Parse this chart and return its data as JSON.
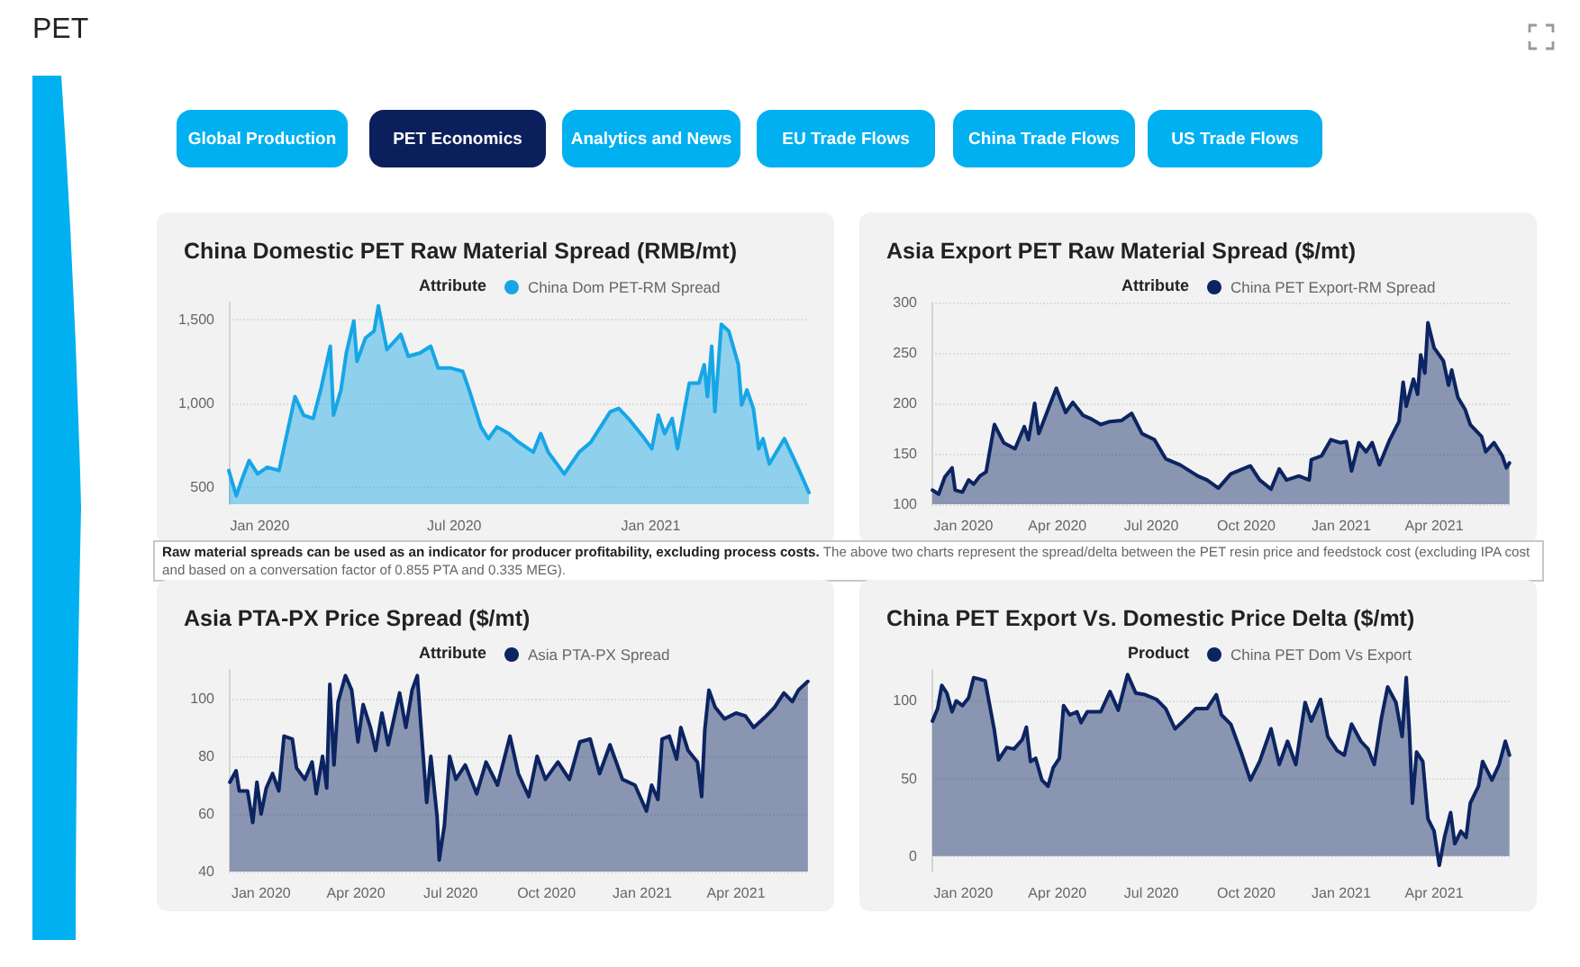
{
  "chart_data": [
    {
      "type": "other",
      "title": "PET",
      "annotations": [
        "Global Production",
        "PET Economics",
        "Analytics and News",
        "EU Trade Flows",
        "China Trade Flows",
        "US Trade Flows"
      ],
      "colors": [
        "#00b0f0",
        "#0b1f5c",
        "#00b0f0",
        "#00b0f0",
        "#00b0f0",
        "#00b0f0"
      ]
    },
    {
      "type": "area",
      "title": "China Domestic PET Raw Material Spread (RMB/mt)",
      "legend_title": "Attribute",
      "legend": "top",
      "grid": "y",
      "x": [
        "2019-12-03",
        "2019-12-10",
        "2019-12-16",
        "2019-12-22",
        "2019-12-30",
        "2020-01-08",
        "2020-01-19",
        "2020-02-03",
        "2020-02-11",
        "2020-02-20",
        "2020-02-27",
        "2020-03-07",
        "2020-03-10",
        "2020-03-17",
        "2020-03-22",
        "2020-03-29",
        "2020-04-01",
        "2020-04-09",
        "2020-04-17",
        "2020-04-21",
        "2020-04-29",
        "2020-05-12",
        "2020-05-19",
        "2020-05-30",
        "2020-06-09",
        "2020-06-16",
        "2020-06-28",
        "2020-07-09",
        "2020-07-15",
        "2020-07-26",
        "2020-08-02",
        "2020-08-10",
        "2020-08-21",
        "2020-08-30",
        "2020-09-13",
        "2020-09-20",
        "2020-09-27",
        "2020-10-12",
        "2020-10-26",
        "2020-11-06",
        "2020-11-24",
        "2020-12-02",
        "2020-12-11",
        "2020-12-25",
        "2021-01-02",
        "2021-01-08",
        "2021-01-14",
        "2021-01-21",
        "2021-01-26",
        "2021-02-06",
        "2021-02-15",
        "2021-02-20",
        "2021-02-23",
        "2021-02-27",
        "2021-03-02",
        "2021-03-08",
        "2021-03-15",
        "2021-03-24",
        "2021-03-27",
        "2021-04-01",
        "2021-04-07",
        "2021-04-12",
        "2021-04-16",
        "2021-04-22",
        "2021-05-06",
        "2021-05-12",
        "2021-05-20",
        "2021-05-29"
      ],
      "series": [
        {
          "name": "China Dom PET-RM Spread",
          "color": "#16a6e6",
          "values": [
            600,
            450,
            560,
            660,
            580,
            620,
            600,
            1040,
            930,
            910,
            1080,
            1340,
            930,
            1080,
            1300,
            1490,
            1250,
            1390,
            1430,
            1580,
            1320,
            1410,
            1280,
            1300,
            1340,
            1210,
            1210,
            1190,
            1080,
            860,
            790,
            860,
            820,
            770,
            710,
            820,
            710,
            580,
            710,
            770,
            950,
            970,
            910,
            800,
            730,
            930,
            820,
            910,
            730,
            1120,
            1120,
            1230,
            1040,
            1340,
            950,
            1470,
            1430,
            1230,
            990,
            1080,
            970,
            730,
            790,
            640,
            790,
            710,
            600,
            470
          ]
        }
      ],
      "xlim": [
        "2019-12-03",
        "2021-05-29"
      ],
      "xticks": [
        {
          "value": "2020-01-01",
          "label": "Jan 2020"
        },
        {
          "value": "2020-07-01",
          "label": "Jul 2020"
        },
        {
          "value": "2021-01-01",
          "label": "Jan 2021"
        }
      ],
      "ylim": [
        400,
        1600
      ],
      "yticks": [
        500,
        {
          "value": 1000,
          "label": "1,000"
        },
        {
          "value": 1500,
          "label": "1,500"
        }
      ]
    },
    {
      "type": "area",
      "title": "Asia Export PET Raw Material Spread ($/mt)",
      "legend_title": "Attribute",
      "legend": "top",
      "grid": "y",
      "x": [
        "2019-12-02",
        "2019-12-08",
        "2019-12-14",
        "2019-12-21",
        "2019-12-24",
        "2019-12-31",
        "2020-01-06",
        "2020-01-11",
        "2020-01-17",
        "2020-01-23",
        "2020-01-31",
        "2020-02-09",
        "2020-02-20",
        "2020-02-29",
        "2020-03-04",
        "2020-03-10",
        "2020-03-14",
        "2020-03-23",
        "2020-03-31",
        "2020-04-09",
        "2020-04-16",
        "2020-04-26",
        "2020-05-03",
        "2020-05-13",
        "2020-05-22",
        "2020-06-02",
        "2020-06-12",
        "2020-06-22",
        "2020-07-04",
        "2020-07-15",
        "2020-07-29",
        "2020-08-15",
        "2020-08-24",
        "2020-09-04",
        "2020-09-16",
        "2020-10-05",
        "2020-10-14",
        "2020-10-25",
        "2020-11-02",
        "2020-11-09",
        "2020-11-21",
        "2020-12-01",
        "2020-12-03",
        "2020-12-13",
        "2020-12-22",
        "2020-12-31",
        "2021-01-06",
        "2021-01-11",
        "2021-01-18",
        "2021-01-25",
        "2021-01-31",
        "2021-02-07",
        "2021-02-17",
        "2021-02-26",
        "2021-03-02",
        "2021-03-05",
        "2021-03-12",
        "2021-03-16",
        "2021-03-19",
        "2021-03-23",
        "2021-03-26",
        "2021-04-01",
        "2021-04-10",
        "2021-04-15",
        "2021-04-18",
        "2021-04-24",
        "2021-05-01",
        "2021-05-06",
        "2021-05-17",
        "2021-05-21",
        "2021-05-29",
        "2021-06-06",
        "2021-06-10",
        "2021-06-13"
      ],
      "series": [
        {
          "name": "China PET Export-RM Spread",
          "color": "#0c2461",
          "values": [
            114,
            110,
            127,
            136,
            114,
            112,
            124,
            120,
            128,
            132,
            179,
            161,
            155,
            177,
            164,
            200,
            170,
            194,
            215,
            191,
            201,
            188,
            185,
            179,
            182,
            183,
            190,
            170,
            164,
            145,
            139,
            128,
            124,
            116,
            130,
            138,
            124,
            115,
            135,
            124,
            128,
            124,
            144,
            148,
            164,
            161,
            162,
            133,
            161,
            152,
            161,
            139,
            164,
            182,
            221,
            197,
            224,
            209,
            248,
            230,
            280,
            255,
            242,
            218,
            233,
            206,
            194,
            179,
            167,
            152,
            161,
            148,
            136,
            141
          ]
        }
      ],
      "xlim": [
        "2019-12-01",
        "2021-06-15"
      ],
      "xticks": [
        {
          "value": "2020-01-01",
          "label": "Jan 2020"
        },
        {
          "value": "2020-04-01",
          "label": "Apr 2020"
        },
        {
          "value": "2020-07-01",
          "label": "Jul 2020"
        },
        {
          "value": "2020-10-01",
          "label": "Oct 2020"
        },
        {
          "value": "2021-01-01",
          "label": "Jan 2021"
        },
        {
          "value": "2021-04-01",
          "label": "Apr 2021"
        }
      ],
      "ylim": [
        100,
        300
      ],
      "yticks": [
        100,
        150,
        200,
        250,
        300
      ]
    },
    {
      "type": "other",
      "annotations": [
        "Raw material spreads can be used as an indicator for producer profitability, excluding process costs.",
        "The above two charts represent the spread/delta between the PET resin price and feedstock cost (excluding IPA cost and based on a conversation factor of 0.855 PTA and 0.335 MEG)."
      ]
    },
    {
      "type": "area",
      "title": "Asia PTA-PX Price Spread ($/mt)",
      "legend_title": "Attribute",
      "legend": "top",
      "grid": "y",
      "x": [
        "2019-12-02",
        "2019-12-08",
        "2019-12-11",
        "2019-12-19",
        "2019-12-24",
        "2019-12-28",
        "2020-01-01",
        "2020-01-06",
        "2020-01-12",
        "2020-01-18",
        "2020-01-23",
        "2020-01-31",
        "2020-02-04",
        "2020-02-12",
        "2020-02-19",
        "2020-02-23",
        "2020-02-29",
        "2020-03-04",
        "2020-03-07",
        "2020-03-11",
        "2020-03-15",
        "2020-03-22",
        "2020-03-28",
        "2020-04-03",
        "2020-04-08",
        "2020-04-15",
        "2020-04-20",
        "2020-04-26",
        "2020-05-02",
        "2020-05-13",
        "2020-05-19",
        "2020-05-25",
        "2020-05-30",
        "2020-06-03",
        "2020-06-08",
        "2020-06-12",
        "2020-06-18",
        "2020-06-20",
        "2020-06-25",
        "2020-06-30",
        "2020-07-06",
        "2020-07-15",
        "2020-07-26",
        "2020-08-04",
        "2020-08-15",
        "2020-08-27",
        "2020-09-04",
        "2020-09-14",
        "2020-09-22",
        "2020-09-30",
        "2020-10-12",
        "2020-10-23",
        "2020-11-02",
        "2020-11-12",
        "2020-11-21",
        "2020-12-01",
        "2020-12-13",
        "2020-12-25",
        "2021-01-05",
        "2021-01-10",
        "2021-01-16",
        "2021-01-20",
        "2021-01-27",
        "2021-02-03",
        "2021-02-07",
        "2021-02-14",
        "2021-02-23",
        "2021-02-27",
        "2021-03-02",
        "2021-03-06",
        "2021-03-12",
        "2021-03-21",
        "2021-04-01",
        "2021-04-10",
        "2021-04-18",
        "2021-04-30",
        "2021-05-08",
        "2021-05-17",
        "2021-05-25",
        "2021-05-31",
        "2021-06-09"
      ],
      "series": [
        {
          "name": "Asia PTA-PX Spread",
          "color": "#0c2461",
          "values": [
            71,
            75,
            68,
            68,
            57,
            71,
            60,
            69,
            74,
            68,
            87,
            86,
            76,
            72,
            78,
            67,
            80,
            69,
            105,
            77,
            99,
            108,
            103,
            85,
            98,
            90,
            82,
            95,
            84,
            102,
            90,
            103,
            108,
            88,
            64,
            80,
            59,
            44,
            56,
            80,
            72,
            77,
            67,
            78,
            70,
            87,
            74,
            66,
            80,
            72,
            78,
            72,
            85,
            86,
            74,
            84,
            72,
            70,
            61,
            70,
            65,
            86,
            87,
            79,
            90,
            82,
            78,
            66,
            89,
            103,
            97,
            93,
            95,
            94,
            90,
            94,
            97,
            102,
            99,
            103,
            106
          ]
        }
      ],
      "xlim": [
        "2019-12-01",
        "2021-06-10"
      ],
      "xticks": [
        {
          "value": "2020-01-01",
          "label": "Jan 2020"
        },
        {
          "value": "2020-04-01",
          "label": "Apr 2020"
        },
        {
          "value": "2020-07-01",
          "label": "Jul 2020"
        },
        {
          "value": "2020-10-01",
          "label": "Oct 2020"
        },
        {
          "value": "2021-01-01",
          "label": "Jan 2021"
        },
        {
          "value": "2021-04-01",
          "label": "Apr 2021"
        }
      ],
      "ylim": [
        40,
        110
      ],
      "yticks": [
        40,
        60,
        80,
        100
      ]
    },
    {
      "type": "area",
      "title": "China PET Export Vs. Domestic Price Delta ($/mt)",
      "legend_title": "Product",
      "legend": "top",
      "grid": "y",
      "x": [
        "2019-12-02",
        "2019-12-07",
        "2019-12-11",
        "2019-12-16",
        "2019-12-21",
        "2019-12-25",
        "2019-12-31",
        "2020-01-06",
        "2020-01-11",
        "2020-01-17",
        "2020-01-22",
        "2020-01-31",
        "2020-02-04",
        "2020-02-12",
        "2020-02-19",
        "2020-02-27",
        "2020-03-02",
        "2020-03-06",
        "2020-03-11",
        "2020-03-17",
        "2020-03-23",
        "2020-03-28",
        "2020-04-03",
        "2020-04-07",
        "2020-04-13",
        "2020-04-20",
        "2020-04-24",
        "2020-04-30",
        "2020-05-13",
        "2020-05-22",
        "2020-05-30",
        "2020-06-08",
        "2020-06-16",
        "2020-06-25",
        "2020-07-06",
        "2020-07-15",
        "2020-07-24",
        "2020-08-01",
        "2020-08-13",
        "2020-08-24",
        "2020-09-02",
        "2020-09-07",
        "2020-09-16",
        "2020-09-27",
        "2020-10-05",
        "2020-10-14",
        "2020-10-25",
        "2020-11-02",
        "2020-11-10",
        "2020-11-18",
        "2020-11-27",
        "2020-12-03",
        "2020-12-12",
        "2020-12-19",
        "2020-12-28",
        "2021-01-04",
        "2021-01-11",
        "2021-01-20",
        "2021-01-27",
        "2021-02-02",
        "2021-02-09",
        "2021-02-15",
        "2021-02-23",
        "2021-03-01",
        "2021-03-05",
        "2021-03-08",
        "2021-03-11",
        "2021-03-15",
        "2021-03-21",
        "2021-03-26",
        "2021-04-01",
        "2021-04-06",
        "2021-04-11",
        "2021-04-17",
        "2021-04-21",
        "2021-04-27",
        "2021-05-02",
        "2021-05-06",
        "2021-05-14",
        "2021-05-18",
        "2021-05-27",
        "2021-06-03",
        "2021-06-09",
        "2021-06-13"
      ],
      "series": [
        {
          "name": "China PET Dom Vs Export",
          "color": "#0c2461",
          "values": [
            87,
            95,
            110,
            105,
            93,
            100,
            97,
            102,
            115,
            114,
            113,
            81,
            62,
            70,
            69,
            75,
            83,
            61,
            63,
            49,
            45,
            57,
            63,
            97,
            91,
            93,
            86,
            93,
            93,
            106,
            94,
            117,
            105,
            104,
            101,
            95,
            82,
            87,
            95,
            95,
            104,
            91,
            85,
            65,
            49,
            61,
            82,
            59,
            74,
            59,
            99,
            87,
            101,
            77,
            68,
            65,
            85,
            74,
            69,
            59,
            89,
            109,
            99,
            77,
            115,
            81,
            34,
            67,
            61,
            24,
            16,
            -6,
            12,
            28,
            8,
            16,
            12,
            34,
            45,
            61,
            49,
            59,
            74,
            65
          ]
        }
      ],
      "xlim": [
        "2019-12-01",
        "2021-06-15"
      ],
      "xticks": [
        {
          "value": "2020-01-01",
          "label": "Jan 2020"
        },
        {
          "value": "2020-04-01",
          "label": "Apr 2020"
        },
        {
          "value": "2020-07-01",
          "label": "Jul 2020"
        },
        {
          "value": "2020-10-01",
          "label": "Oct 2020"
        },
        {
          "value": "2021-01-01",
          "label": "Jan 2021"
        },
        {
          "value": "2021-04-01",
          "label": "Apr 2021"
        }
      ],
      "ylim": [
        -10,
        120
      ],
      "yticks": [
        0,
        50,
        100
      ]
    }
  ]
}
